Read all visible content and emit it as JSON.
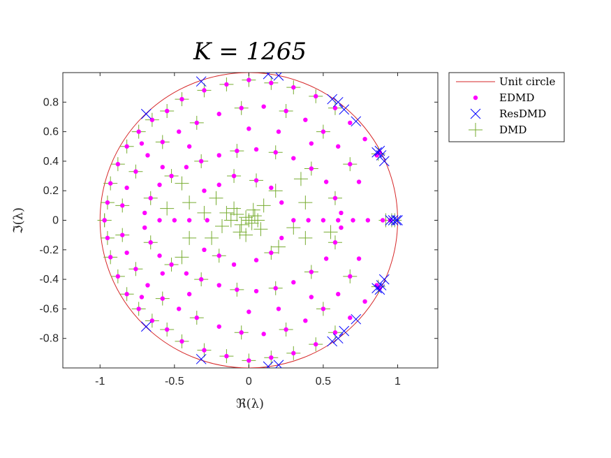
{
  "chart_data": {
    "type": "scatter",
    "title": "K = 1265",
    "xlabel": "ℜ(λ)",
    "ylabel": "ℑ(λ)",
    "xlim": [
      -1.25,
      1.27
    ],
    "ylim": [
      -1.0,
      1.0
    ],
    "xticks": [
      -1,
      -0.5,
      0,
      0.5,
      1
    ],
    "xtick_labels": [
      "-1",
      "-0.5",
      "0",
      "0.5",
      "1"
    ],
    "yticks": [
      -0.8,
      -0.6,
      -0.4,
      -0.2,
      0,
      0.2,
      0.4,
      0.6,
      0.8
    ],
    "ytick_labels": [
      "-0.8",
      "-0.6",
      "-0.4",
      "-0.2",
      "0",
      "0.2",
      "0.4",
      "0.6",
      "0.8"
    ],
    "grid": false,
    "legend_position": "outside-top-right",
    "colors": {
      "unit_circle": "#d62728",
      "edmd": "#ff00ff",
      "resdmd": "#0000ff",
      "dmd": "#77ac30"
    },
    "series": [
      {
        "name": "Unit circle",
        "style": "line",
        "description_values": "radius 1 centered at origin"
      },
      {
        "name": "EDMD",
        "style": "dot",
        "points": [
          [
            -0.97,
            0.0
          ],
          [
            -0.95,
            0.12
          ],
          [
            -0.93,
            0.25
          ],
          [
            -0.88,
            0.38
          ],
          [
            -0.82,
            0.5
          ],
          [
            -0.74,
            0.6
          ],
          [
            -0.65,
            0.68
          ],
          [
            -0.55,
            0.74
          ],
          [
            -0.45,
            0.82
          ],
          [
            -0.3,
            0.88
          ],
          [
            -0.15,
            0.92
          ],
          [
            0.0,
            0.95
          ],
          [
            0.15,
            0.93
          ],
          [
            0.3,
            0.9
          ],
          [
            0.45,
            0.84
          ],
          [
            0.58,
            0.76
          ],
          [
            0.68,
            0.66
          ],
          [
            0.78,
            0.55
          ],
          [
            -0.97,
            -0.0
          ],
          [
            -0.95,
            -0.12
          ],
          [
            -0.93,
            -0.25
          ],
          [
            -0.88,
            -0.38
          ],
          [
            -0.82,
            -0.5
          ],
          [
            -0.74,
            -0.6
          ],
          [
            -0.65,
            -0.68
          ],
          [
            -0.55,
            -0.74
          ],
          [
            -0.45,
            -0.82
          ],
          [
            -0.3,
            -0.88
          ],
          [
            -0.15,
            -0.92
          ],
          [
            0.0,
            -0.95
          ],
          [
            0.15,
            -0.93
          ],
          [
            0.3,
            -0.9
          ],
          [
            0.45,
            -0.84
          ],
          [
            0.58,
            -0.76
          ],
          [
            0.68,
            -0.66
          ],
          [
            0.78,
            -0.55
          ],
          [
            -0.85,
            0.1
          ],
          [
            -0.82,
            0.22
          ],
          [
            -0.76,
            0.33
          ],
          [
            -0.68,
            0.44
          ],
          [
            -0.58,
            0.53
          ],
          [
            -0.47,
            0.6
          ],
          [
            -0.35,
            0.66
          ],
          [
            -0.2,
            0.72
          ],
          [
            -0.05,
            0.76
          ],
          [
            0.1,
            0.77
          ],
          [
            0.25,
            0.74
          ],
          [
            0.38,
            0.68
          ],
          [
            0.5,
            0.6
          ],
          [
            0.6,
            0.5
          ],
          [
            0.68,
            0.38
          ],
          [
            0.74,
            0.26
          ],
          [
            -0.85,
            -0.1
          ],
          [
            -0.82,
            -0.22
          ],
          [
            -0.76,
            -0.33
          ],
          [
            -0.68,
            -0.44
          ],
          [
            -0.58,
            -0.53
          ],
          [
            -0.47,
            -0.6
          ],
          [
            -0.35,
            -0.66
          ],
          [
            -0.2,
            -0.72
          ],
          [
            -0.05,
            -0.76
          ],
          [
            0.1,
            -0.77
          ],
          [
            0.25,
            -0.74
          ],
          [
            0.38,
            -0.68
          ],
          [
            0.5,
            -0.6
          ],
          [
            0.6,
            -0.5
          ],
          [
            0.68,
            -0.38
          ],
          [
            0.74,
            -0.26
          ],
          [
            -0.7,
            0.05
          ],
          [
            -0.66,
            0.15
          ],
          [
            -0.6,
            0.24
          ],
          [
            -0.52,
            0.3
          ],
          [
            -0.42,
            0.36
          ],
          [
            -0.32,
            0.4
          ],
          [
            -0.2,
            0.44
          ],
          [
            -0.08,
            0.47
          ],
          [
            0.05,
            0.48
          ],
          [
            0.18,
            0.46
          ],
          [
            0.3,
            0.42
          ],
          [
            0.42,
            0.35
          ],
          [
            0.52,
            0.26
          ],
          [
            0.58,
            0.15
          ],
          [
            0.62,
            0.05
          ],
          [
            -0.7,
            -0.05
          ],
          [
            -0.66,
            -0.15
          ],
          [
            -0.6,
            -0.24
          ],
          [
            -0.52,
            -0.3
          ],
          [
            -0.42,
            -0.36
          ],
          [
            -0.32,
            -0.4
          ],
          [
            -0.2,
            -0.44
          ],
          [
            -0.08,
            -0.47
          ],
          [
            0.05,
            -0.48
          ],
          [
            0.18,
            -0.46
          ],
          [
            0.3,
            -0.42
          ],
          [
            0.42,
            -0.35
          ],
          [
            0.52,
            -0.26
          ],
          [
            0.58,
            -0.15
          ],
          [
            0.62,
            -0.05
          ],
          [
            -0.3,
            0.2
          ],
          [
            -0.2,
            0.24
          ],
          [
            -0.1,
            0.3
          ],
          [
            0.05,
            0.27
          ],
          [
            0.15,
            0.22
          ],
          [
            0.22,
            0.12
          ],
          [
            -0.3,
            -0.2
          ],
          [
            -0.2,
            -0.24
          ],
          [
            -0.1,
            -0.3
          ],
          [
            0.05,
            -0.27
          ],
          [
            0.15,
            -0.22
          ],
          [
            0.22,
            -0.12
          ],
          [
            -0.6,
            0.0
          ],
          [
            -0.5,
            0.0
          ],
          [
            -0.4,
            0.0
          ],
          [
            -0.28,
            0.0
          ],
          [
            0.3,
            0.0
          ],
          [
            0.4,
            0.0
          ],
          [
            0.5,
            0.0
          ],
          [
            0.6,
            0.0
          ],
          [
            0.7,
            0.0
          ],
          [
            0.8,
            0.0
          ],
          [
            0.9,
            0.0
          ],
          [
            0.95,
            0.0
          ],
          [
            0.86,
            0.44
          ],
          [
            0.88,
            0.46
          ],
          [
            0.86,
            -0.44
          ],
          [
            0.88,
            -0.46
          ],
          [
            -0.58,
            0.36
          ],
          [
            -0.4,
            0.5
          ],
          [
            0.2,
            0.6
          ],
          [
            0.42,
            0.52
          ],
          [
            -0.58,
            -0.36
          ],
          [
            -0.4,
            -0.5
          ],
          [
            0.2,
            -0.6
          ],
          [
            0.42,
            -0.52
          ],
          [
            0.0,
            0.62
          ],
          [
            0.0,
            -0.62
          ],
          [
            -0.72,
            0.52
          ],
          [
            -0.72,
            -0.52
          ]
        ]
      },
      {
        "name": "ResDMD",
        "style": "x",
        "points": [
          [
            0.13,
            0.99
          ],
          [
            0.2,
            0.98
          ],
          [
            -0.32,
            0.94
          ],
          [
            0.56,
            0.82
          ],
          [
            0.6,
            0.8
          ],
          [
            0.64,
            0.75
          ],
          [
            0.72,
            0.67
          ],
          [
            -0.69,
            0.72
          ],
          [
            0.86,
            0.46
          ],
          [
            0.88,
            0.47
          ],
          [
            0.89,
            0.44
          ],
          [
            0.91,
            0.4
          ],
          [
            0.95,
            0.0
          ],
          [
            0.97,
            0.0
          ],
          [
            0.99,
            0.0
          ],
          [
            1.0,
            0.0
          ],
          [
            0.13,
            -0.99
          ],
          [
            0.2,
            -0.98
          ],
          [
            -0.32,
            -0.94
          ],
          [
            0.56,
            -0.82
          ],
          [
            0.6,
            -0.8
          ],
          [
            0.64,
            -0.75
          ],
          [
            0.72,
            -0.67
          ],
          [
            -0.69,
            -0.72
          ],
          [
            0.86,
            -0.46
          ],
          [
            0.88,
            -0.47
          ],
          [
            0.89,
            -0.44
          ],
          [
            0.91,
            -0.4
          ]
        ]
      },
      {
        "name": "DMD",
        "style": "plus",
        "points": [
          [
            -0.97,
            0.0
          ],
          [
            -0.95,
            0.12
          ],
          [
            -0.93,
            0.25
          ],
          [
            -0.88,
            0.38
          ],
          [
            -0.82,
            0.5
          ],
          [
            -0.74,
            0.6
          ],
          [
            -0.65,
            0.68
          ],
          [
            -0.55,
            0.74
          ],
          [
            -0.45,
            0.82
          ],
          [
            -0.3,
            0.88
          ],
          [
            -0.15,
            0.92
          ],
          [
            0.0,
            0.95
          ],
          [
            0.15,
            0.93
          ],
          [
            0.3,
            0.9
          ],
          [
            0.45,
            0.84
          ],
          [
            0.58,
            0.76
          ],
          [
            -0.97,
            -0.0
          ],
          [
            -0.95,
            -0.12
          ],
          [
            -0.93,
            -0.25
          ],
          [
            -0.88,
            -0.38
          ],
          [
            -0.82,
            -0.5
          ],
          [
            -0.74,
            -0.6
          ],
          [
            -0.65,
            -0.68
          ],
          [
            -0.55,
            -0.74
          ],
          [
            -0.45,
            -0.82
          ],
          [
            -0.3,
            -0.88
          ],
          [
            -0.15,
            -0.92
          ],
          [
            0.0,
            -0.95
          ],
          [
            0.15,
            -0.93
          ],
          [
            0.3,
            -0.9
          ],
          [
            0.45,
            -0.84
          ],
          [
            0.58,
            -0.76
          ],
          [
            -0.85,
            0.1
          ],
          [
            -0.76,
            0.33
          ],
          [
            -0.58,
            0.53
          ],
          [
            -0.35,
            0.66
          ],
          [
            -0.05,
            0.76
          ],
          [
            0.25,
            0.74
          ],
          [
            0.5,
            0.6
          ],
          [
            0.68,
            0.38
          ],
          [
            -0.85,
            -0.1
          ],
          [
            -0.76,
            -0.33
          ],
          [
            -0.58,
            -0.53
          ],
          [
            -0.35,
            -0.66
          ],
          [
            -0.05,
            -0.76
          ],
          [
            0.25,
            -0.74
          ],
          [
            0.5,
            -0.6
          ],
          [
            0.68,
            -0.38
          ],
          [
            -0.66,
            0.15
          ],
          [
            -0.52,
            0.3
          ],
          [
            -0.32,
            0.4
          ],
          [
            -0.08,
            0.47
          ],
          [
            0.18,
            0.46
          ],
          [
            0.42,
            0.35
          ],
          [
            0.58,
            0.15
          ],
          [
            -0.66,
            -0.15
          ],
          [
            -0.52,
            -0.3
          ],
          [
            -0.32,
            -0.4
          ],
          [
            -0.08,
            -0.47
          ],
          [
            0.18,
            -0.46
          ],
          [
            0.42,
            -0.35
          ],
          [
            0.58,
            -0.15
          ],
          [
            -0.12,
            0.0
          ],
          [
            -0.08,
            0.04
          ],
          [
            -0.05,
            -0.03
          ],
          [
            -0.02,
            0.02
          ],
          [
            0.0,
            0.0
          ],
          [
            0.02,
            -0.02
          ],
          [
            0.04,
            0.03
          ],
          [
            0.06,
            0.0
          ],
          [
            -0.1,
            0.08
          ],
          [
            -0.06,
            -0.08
          ],
          [
            0.03,
            0.07
          ],
          [
            0.08,
            -0.06
          ],
          [
            -0.15,
            0.05
          ],
          [
            -0.18,
            -0.04
          ],
          [
            0.1,
            0.1
          ],
          [
            -0.02,
            -0.1
          ],
          [
            -0.22,
            0.15
          ],
          [
            -0.25,
            -0.12
          ],
          [
            0.18,
            0.2
          ],
          [
            0.2,
            -0.18
          ],
          [
            -0.3,
            0.05
          ],
          [
            0.3,
            -0.05
          ],
          [
            -0.4,
            0.12
          ],
          [
            0.38,
            0.12
          ],
          [
            -0.4,
            -0.12
          ],
          [
            0.38,
            -0.12
          ],
          [
            -0.55,
            0.08
          ],
          [
            0.55,
            -0.08
          ],
          [
            0.92,
            0.0
          ],
          [
            0.96,
            0.0
          ],
          [
            0.98,
            0.0
          ],
          [
            0.87,
            0.45
          ],
          [
            0.87,
            -0.45
          ],
          [
            -0.1,
            0.3
          ],
          [
            0.05,
            0.27
          ],
          [
            -0.2,
            -0.24
          ],
          [
            0.15,
            -0.22
          ],
          [
            -0.45,
            0.25
          ],
          [
            -0.45,
            -0.25
          ],
          [
            0.35,
            0.28
          ]
        ]
      }
    ]
  }
}
